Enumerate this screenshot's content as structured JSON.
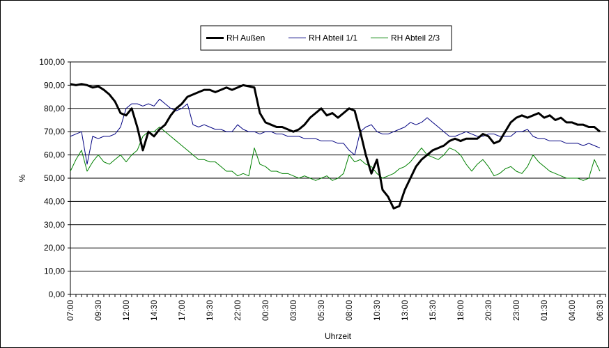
{
  "chart_data": {
    "type": "line",
    "x_label": "Uhrzeit",
    "y_label": "%",
    "categories": [
      "07:00",
      null,
      null,
      null,
      null,
      "09:30",
      null,
      null,
      null,
      null,
      "12:00",
      null,
      null,
      null,
      null,
      "14:30",
      null,
      null,
      null,
      null,
      "17:00",
      null,
      null,
      null,
      null,
      "19:30",
      null,
      null,
      null,
      null,
      "22:00",
      null,
      null,
      null,
      null,
      "00:30",
      null,
      null,
      null,
      null,
      "03:00",
      null,
      null,
      null,
      null,
      "05:30",
      null,
      null,
      null,
      null,
      "08:00",
      null,
      null,
      null,
      null,
      "10:30",
      null,
      null,
      null,
      null,
      "13:00",
      null,
      null,
      null,
      null,
      "15:30",
      null,
      null,
      null,
      null,
      "18:00",
      null,
      null,
      null,
      null,
      "20:30",
      null,
      null,
      null,
      null,
      "23:00",
      null,
      null,
      null,
      null,
      "01:30",
      null,
      null,
      null,
      null,
      "04:00",
      null,
      null,
      null,
      null,
      "06:30"
    ],
    "series": [
      {
        "name": "RH Außen",
        "color": "#000000",
        "width": 3,
        "values": [
          90.5,
          90,
          90.5,
          90,
          89,
          89.5,
          88,
          86,
          83,
          78,
          77,
          80,
          72,
          62,
          70,
          68,
          71,
          73,
          77,
          80,
          82,
          85,
          86,
          87,
          88,
          88,
          87,
          88,
          89,
          88,
          89,
          90,
          89.5,
          89,
          78,
          74,
          73,
          72,
          72,
          71,
          70,
          71,
          73,
          76,
          78,
          80,
          77,
          78,
          76,
          78,
          80,
          79,
          70,
          60,
          52,
          58,
          45,
          42,
          37,
          38,
          45,
          50,
          55,
          58,
          60,
          62,
          63,
          64,
          66,
          67,
          66,
          67,
          67,
          67,
          69,
          68,
          65,
          66,
          70,
          74,
          76,
          77,
          76,
          77,
          78,
          76,
          77,
          75,
          76,
          74,
          74,
          73,
          73,
          72,
          72,
          70
        ]
      },
      {
        "name": "RH Abteil 1/1",
        "color": "#000080",
        "width": 1,
        "values": [
          68,
          69,
          70,
          56,
          68,
          67,
          68,
          68,
          69,
          72,
          80,
          82,
          82,
          81,
          82,
          81,
          84,
          82,
          80,
          79,
          80,
          82,
          73,
          72,
          73,
          72,
          71,
          71,
          70,
          70,
          73,
          71,
          70,
          70,
          69,
          70,
          70,
          69,
          69,
          68,
          68,
          68,
          67,
          67,
          67,
          66,
          66,
          66,
          65,
          65,
          62,
          60,
          70,
          72,
          73,
          70,
          69,
          69,
          70,
          71,
          72,
          74,
          73,
          74,
          76,
          74,
          72,
          70,
          68,
          68,
          69,
          70,
          69,
          68,
          68,
          69,
          69,
          68,
          68,
          68,
          70,
          70,
          71,
          68,
          67,
          67,
          66,
          66,
          66,
          65,
          65,
          65,
          64,
          65,
          64,
          63
        ]
      },
      {
        "name": "RH Abteil 2/3",
        "color": "#008000",
        "width": 1,
        "values": [
          53,
          58,
          62,
          53,
          57,
          60,
          57,
          56,
          58,
          60,
          57,
          60,
          62,
          68,
          70,
          70,
          72,
          70,
          68,
          66,
          64,
          62,
          60,
          58,
          58,
          57,
          57,
          55,
          53,
          53,
          51,
          52,
          51,
          63,
          56,
          55,
          53,
          53,
          52,
          52,
          51,
          50,
          51,
          50,
          49,
          50,
          51,
          49,
          50,
          52,
          60,
          57,
          58,
          56,
          55,
          52,
          50,
          51,
          52,
          54,
          55,
          57,
          60,
          63,
          60,
          59,
          58,
          60,
          63,
          62,
          60,
          56,
          53,
          56,
          58,
          55,
          51,
          52,
          54,
          55,
          53,
          52,
          55,
          60,
          57,
          55,
          53,
          52,
          51,
          50,
          50,
          50,
          49,
          50,
          58,
          53
        ]
      }
    ],
    "ylim": [
      0,
      100
    ],
    "yticks": [
      {
        "value": 0,
        "label": "0,00"
      },
      {
        "value": 10,
        "label": "10,00"
      },
      {
        "value": 20,
        "label": "20,00"
      },
      {
        "value": 30,
        "label": "30,00"
      },
      {
        "value": 40,
        "label": "40,00"
      },
      {
        "value": 50,
        "label": "50,00"
      },
      {
        "value": 60,
        "label": "60,00"
      },
      {
        "value": 70,
        "label": "70,00"
      },
      {
        "value": 80,
        "label": "80,00"
      },
      {
        "value": 90,
        "label": "90,00"
      },
      {
        "value": 100,
        "label": "100,00"
      }
    ],
    "grid": true,
    "legend": "top"
  }
}
